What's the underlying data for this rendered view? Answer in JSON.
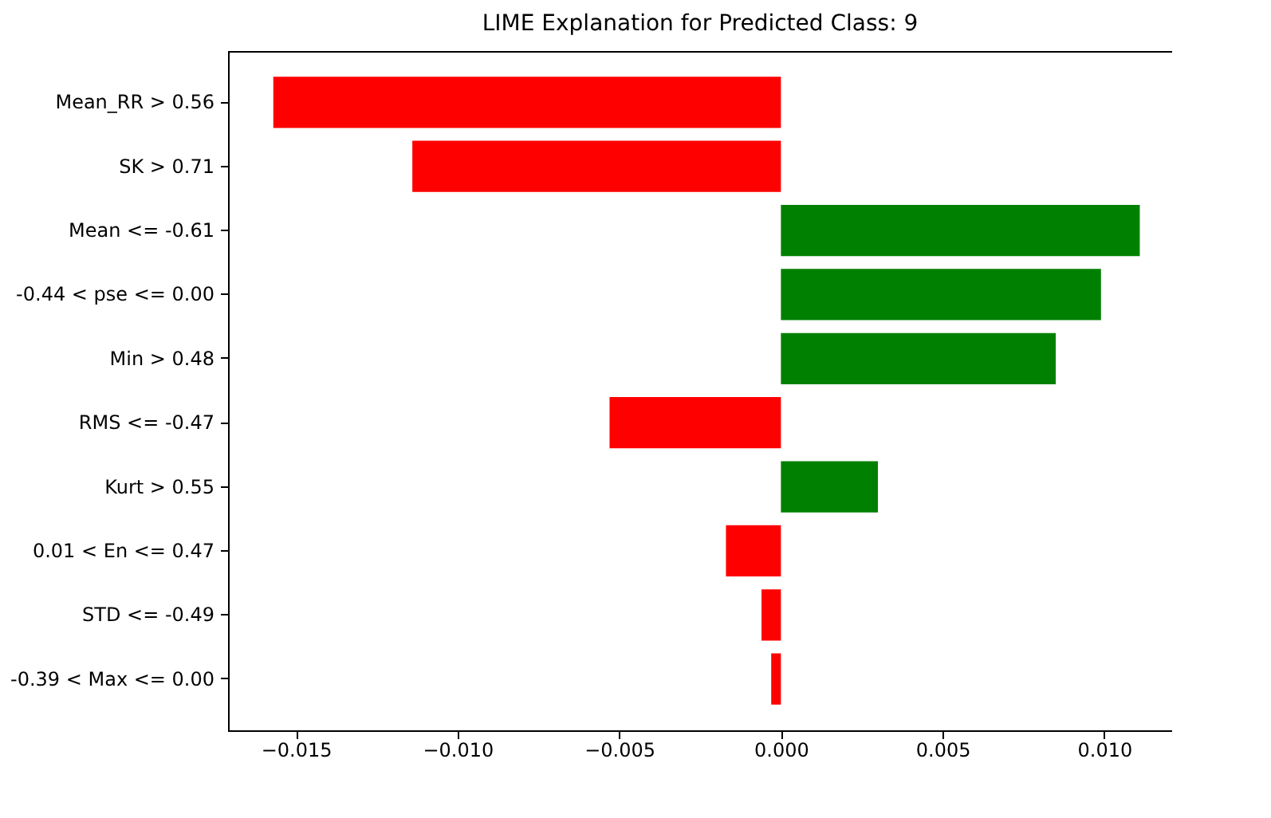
{
  "chart_data": {
    "type": "bar",
    "orientation": "horizontal",
    "title": "LIME Explanation for Predicted Class: 9",
    "categories": [
      "Mean_RR > 0.56",
      "SK > 0.71",
      "Mean <= -0.61",
      "-0.44 < pse <= 0.00",
      "Min > 0.48",
      "RMS <= -0.47",
      "Kurt > 0.55",
      "0.01 < En <= 0.47",
      "STD <= -0.49",
      "-0.39 < Max <= 0.00"
    ],
    "values": [
      -0.0157,
      -0.0114,
      0.0111,
      0.0099,
      0.0085,
      -0.0053,
      0.003,
      -0.0017,
      -0.0006,
      -0.0003
    ],
    "colors": [
      "#ff0000",
      "#ff0000",
      "#008000",
      "#008000",
      "#008000",
      "#ff0000",
      "#008000",
      "#ff0000",
      "#ff0000",
      "#ff0000"
    ],
    "xlim": [
      -0.0171,
      0.0121
    ],
    "xticks": [
      {
        "value": -0.015,
        "label": "−0.015"
      },
      {
        "value": -0.01,
        "label": "−0.010"
      },
      {
        "value": -0.005,
        "label": "−0.005"
      },
      {
        "value": 0,
        "label": "0.000"
      },
      {
        "value": 0.005,
        "label": "0.005"
      },
      {
        "value": 0.01,
        "label": "0.010"
      }
    ],
    "grid": false
  }
}
